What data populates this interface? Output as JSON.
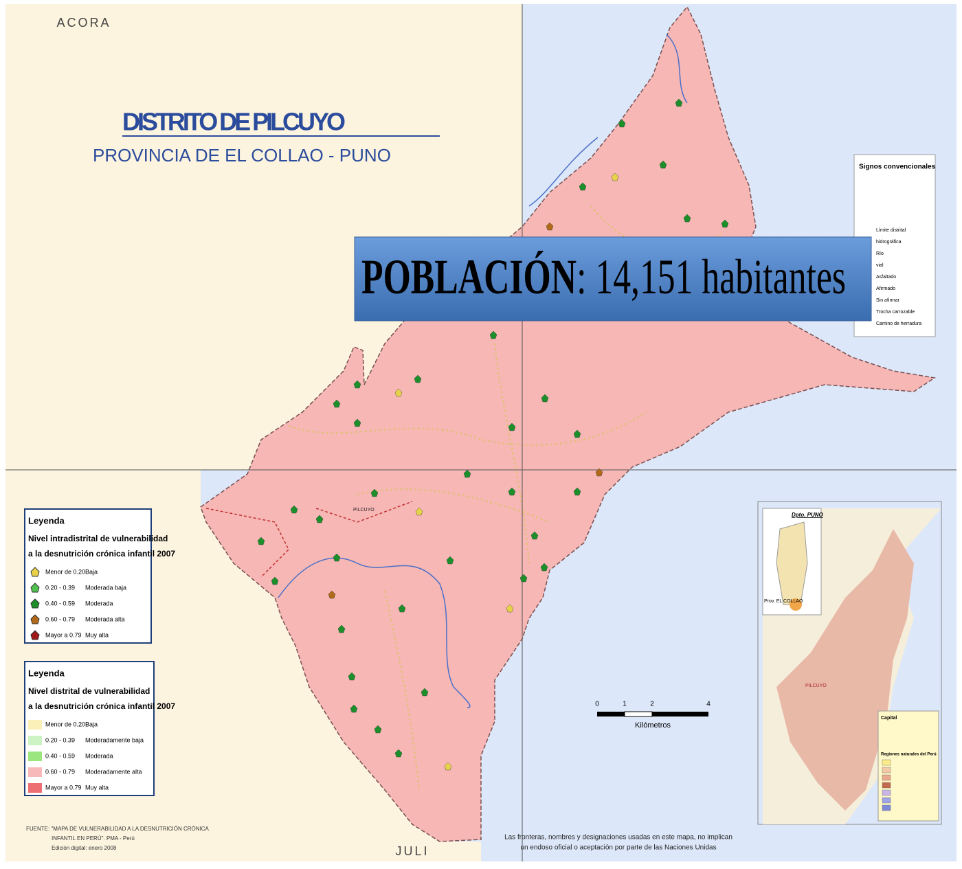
{
  "corner_labels": {
    "top": "ACORA",
    "bottom": "JULI"
  },
  "title": "DISTRITO DE PILCUYO",
  "subtitle": "PROVINCIA DE EL COLLAO - PUNO",
  "banner": {
    "label": "POBLACIÓN",
    "value": ": 14,151 habitantes"
  },
  "signs_legend": {
    "title": "Signos convencionales",
    "items": [
      "Límite distrital",
      "hidrográfica",
      "Río",
      "vial",
      "Asfaltado",
      "Afirmado",
      "Sin afirmar",
      "Trocha carrozable",
      "Camino de herradura"
    ]
  },
  "legend_local": {
    "title": "Leyenda",
    "heading": [
      "Nivel intradistrital de vulnerabilidad",
      "a la desnutrición crónica infantil 2007"
    ],
    "items": [
      {
        "range": "Menor de 0.20",
        "label": "Baja",
        "color": "#e8d24a"
      },
      {
        "range": "0.20 - 0.39",
        "label": "Moderada baja",
        "color": "#4fc04f"
      },
      {
        "range": "0.40 - 0.59",
        "label": "Moderada",
        "color": "#1d8f2a"
      },
      {
        "range": "0.60 - 0.79",
        "label": "Moderada alta",
        "color": "#b06a1a"
      },
      {
        "range": "Mayor a 0.79",
        "label": "Muy alta",
        "color": "#a01818"
      }
    ]
  },
  "legend_district": {
    "title": "Leyenda",
    "heading": [
      "Nivel distrital de vulnerabilidad",
      "a la desnutrición crónica infantil 2007"
    ],
    "items": [
      {
        "range": "Menor de 0.20",
        "label": "Baja",
        "color": "#fbf0b8"
      },
      {
        "range": "0.20 - 0.39",
        "label": "Moderadamente baja",
        "color": "#cdf3c4"
      },
      {
        "range": "0.40 - 0.59",
        "label": "Moderada",
        "color": "#9be67e"
      },
      {
        "range": "0.60 - 0.79",
        "label": "Moderadamente alta",
        "color": "#f7b9b9"
      },
      {
        "range": "Mayor a 0.79",
        "label": "Muy alta",
        "color": "#ee6f73"
      }
    ]
  },
  "place_label": "PILCUYO",
  "scale": {
    "ticks": [
      "0",
      "1",
      "2",
      "4"
    ],
    "unit": "Kilómetros"
  },
  "inset": {
    "title": "Dpto. PUNO",
    "province": "Prov. EL COLLAO",
    "district": "PILCUYO",
    "capital_title": "Capital",
    "regions_title": "Regiones naturales del Perú"
  },
  "source": [
    "FUENTE: \"MAPA DE VULNERABILIDAD A LA DESNUTRICIÓN CRÓNICA",
    "INFANTIL EN PERÚ\". PMA - Perú",
    "Edición digital: enero 2008"
  ],
  "disclaimer": [
    "Las fronteras, nombres y designaciones usadas en este mapa, no implican",
    "un endoso oficial o aceptación por parte de las Naciones Unidas"
  ]
}
